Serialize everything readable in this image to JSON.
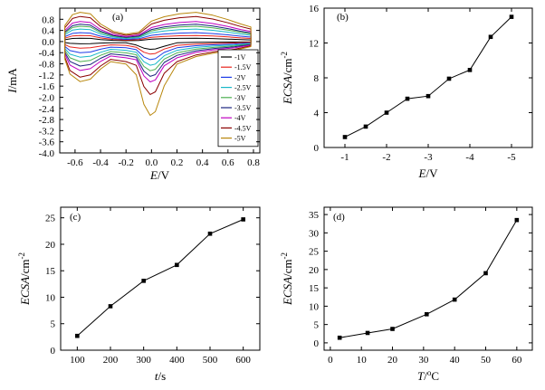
{
  "chart_data": [
    {
      "panel": "(a)",
      "type": "line",
      "xlabel_symbol": "E",
      "xlabel_unit": "/V",
      "ylabel_symbol": "I",
      "ylabel_unit": "/mA",
      "xlim": [
        -0.72,
        0.85
      ],
      "ylim": [
        -4.0,
        1.2
      ],
      "xticks": [
        "-0.6",
        "-0.4",
        "-0.2",
        "0.0",
        "0.2",
        "0.4",
        "0.6",
        "0.8"
      ],
      "xtick_values": [
        -0.6,
        -0.4,
        -0.2,
        0.0,
        0.2,
        0.4,
        0.6,
        0.8
      ],
      "yticks": [
        "0.8",
        "0.4",
        "0.0",
        "-0.4",
        "-0.8",
        "-1.2",
        "-1.6",
        "-2.0",
        "-2.4",
        "-2.8",
        "-3.2",
        "-3.6",
        "-4.0"
      ],
      "ytick_values": [
        0.8,
        0.4,
        0.0,
        -0.4,
        -0.8,
        -1.2,
        -1.6,
        -2.0,
        -2.4,
        -2.8,
        -3.2,
        -3.6,
        -4.0
      ],
      "legend_position": "right",
      "series": [
        {
          "name": "-1V",
          "color": "#000000",
          "upper_peak": 0.12,
          "lower_peak": -0.28,
          "valley": -0.05
        },
        {
          "name": "-1.5V",
          "color": "#e8231c",
          "upper_peak": 0.22,
          "lower_peak": -0.45,
          "valley": -0.15
        },
        {
          "name": "-2V",
          "color": "#1c3ce8",
          "upper_peak": 0.32,
          "lower_peak": -0.65,
          "valley": -0.25
        },
        {
          "name": "-2.5V",
          "color": "#18b8c8",
          "upper_peak": 0.45,
          "lower_peak": -0.85,
          "valley": -0.35
        },
        {
          "name": "-3V",
          "color": "#4caf50",
          "upper_peak": 0.55,
          "lower_peak": -1.05,
          "valley": -0.45
        },
        {
          "name": "-3.5V",
          "color": "#1a237e",
          "upper_peak": 0.62,
          "lower_peak": -1.25,
          "valley": -0.55
        },
        {
          "name": "-4V",
          "color": "#c000c0",
          "upper_peak": 0.72,
          "lower_peak": -1.45,
          "valley": -0.65
        },
        {
          "name": "-4.5V",
          "color": "#8b0000",
          "upper_peak": 0.9,
          "lower_peak": -1.9,
          "valley": -0.8
        },
        {
          "name": "-5V",
          "color": "#b8860b",
          "upper_peak": 1.05,
          "lower_peak": -2.65,
          "valley": -0.9
        }
      ]
    },
    {
      "panel": "(b)",
      "type": "line",
      "xlabel_symbol": "E",
      "xlabel_unit": "/V",
      "ylabel_symbol": "ECSA",
      "ylabel_unit": "/cm",
      "ylabel_sup": "-2",
      "xlim": [
        -0.5,
        -5.5
      ],
      "ylim": [
        0,
        16
      ],
      "xticks": [
        "-1",
        "-2",
        "-3",
        "-4",
        "-5"
      ],
      "xtick_values": [
        -1,
        -2,
        -3,
        -4,
        -5
      ],
      "yticks": [
        "0",
        "4",
        "8",
        "12",
        "16"
      ],
      "ytick_values": [
        0,
        4,
        8,
        12,
        16
      ],
      "x": [
        -1,
        -1.5,
        -2,
        -2.5,
        -3,
        -3.5,
        -4,
        -4.5,
        -5
      ],
      "y": [
        1.2,
        2.4,
        4.0,
        5.6,
        5.9,
        7.9,
        8.9,
        12.7,
        15.0
      ]
    },
    {
      "panel": "(c)",
      "type": "line",
      "xlabel_symbol": "t",
      "xlabel_unit": "/s",
      "ylabel_symbol": "ECSA",
      "ylabel_unit": "/cm",
      "ylabel_sup": "-2",
      "xlim": [
        50,
        650
      ],
      "ylim": [
        0,
        27
      ],
      "xticks": [
        "100",
        "200",
        "300",
        "400",
        "500",
        "600"
      ],
      "xtick_values": [
        100,
        200,
        300,
        400,
        500,
        600
      ],
      "yticks": [
        "0",
        "5",
        "10",
        "15",
        "20",
        "25"
      ],
      "ytick_values": [
        0,
        5,
        10,
        15,
        20,
        25
      ],
      "x": [
        100,
        200,
        300,
        400,
        500,
        600
      ],
      "y": [
        2.7,
        8.3,
        13.1,
        16.1,
        22.0,
        24.7
      ]
    },
    {
      "panel": "(d)",
      "type": "line",
      "xlabel_symbol": "T",
      "xlabel_unit": "/",
      "xlabel_sup": "o",
      "xlabel_unit2": "C",
      "ylabel_symbol": "ECSA",
      "ylabel_unit": "/cm",
      "ylabel_sup": "-2",
      "xlim": [
        -2,
        65
      ],
      "ylim": [
        -2,
        37
      ],
      "xticks": [
        "0",
        "10",
        "20",
        "30",
        "40",
        "50",
        "60"
      ],
      "xtick_values": [
        0,
        10,
        20,
        30,
        40,
        50,
        60
      ],
      "yticks": [
        "0",
        "5",
        "10",
        "15",
        "20",
        "25",
        "30",
        "35"
      ],
      "ytick_values": [
        0,
        5,
        10,
        15,
        20,
        25,
        30,
        35
      ],
      "x": [
        3,
        12,
        20,
        31,
        40,
        50,
        60
      ],
      "y": [
        1.4,
        2.7,
        3.8,
        7.8,
        11.8,
        19.0,
        33.5
      ]
    }
  ]
}
